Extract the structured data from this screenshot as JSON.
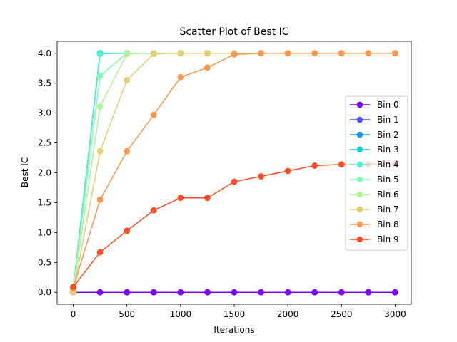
{
  "chart_data": {
    "type": "line",
    "title": "Scatter Plot of Best IC",
    "xlabel": "Iterations",
    "ylabel": "Best IC",
    "xlim": [
      -150,
      3150
    ],
    "ylim": [
      -0.2,
      4.2
    ],
    "xticks": [
      0,
      500,
      1000,
      1500,
      2000,
      2500,
      3000
    ],
    "yticks": [
      0.0,
      0.5,
      1.0,
      1.5,
      2.0,
      2.5,
      3.0,
      3.5,
      4.0
    ],
    "xtick_labels": [
      "0",
      "500",
      "1000",
      "1500",
      "2000",
      "2500",
      "3000"
    ],
    "ytick_labels": [
      "0.0",
      "0.5",
      "1.0",
      "1.5",
      "2.0",
      "2.5",
      "3.0",
      "3.5",
      "4.0"
    ],
    "legend_position": "center-right",
    "grid": false,
    "x": [
      0,
      250,
      500,
      750,
      1000,
      1250,
      1500,
      1750,
      2000,
      2250,
      2500,
      2750,
      3000
    ],
    "series": [
      {
        "name": "Bin 0",
        "color": "#8000ff",
        "values": [
          0,
          0,
          0,
          0,
          0,
          0,
          0,
          0,
          0,
          0,
          0,
          0,
          0
        ]
      },
      {
        "name": "Bin 1",
        "color": "#4c4cf9",
        "values": [
          0.05,
          4.0,
          4.0,
          4.0,
          4.0,
          4.0,
          4.0,
          4.0,
          4.0,
          4.0,
          4.0,
          4.0,
          4.0
        ]
      },
      {
        "name": "Bin 2",
        "color": "#1996f3",
        "values": [
          0.05,
          4.0,
          4.0,
          4.0,
          4.0,
          4.0,
          4.0,
          4.0,
          4.0,
          4.0,
          4.0,
          4.0,
          4.0
        ]
      },
      {
        "name": "Bin 3",
        "color": "#1ccdda",
        "values": [
          0.05,
          4.0,
          4.0,
          4.0,
          4.0,
          4.0,
          4.0,
          4.0,
          4.0,
          4.0,
          4.0,
          4.0,
          4.0
        ]
      },
      {
        "name": "Bin 4",
        "color": "#4df3ce",
        "values": [
          0.05,
          3.99,
          4.0,
          4.0,
          4.0,
          4.0,
          4.0,
          4.0,
          4.0,
          4.0,
          4.0,
          4.0,
          4.0
        ]
      },
      {
        "name": "Bin 5",
        "color": "#80ffb4",
        "values": [
          0.05,
          3.62,
          4.0,
          4.0,
          4.0,
          4.0,
          4.0,
          4.0,
          4.0,
          4.0,
          4.0,
          4.0,
          4.0
        ]
      },
      {
        "name": "Bin 6",
        "color": "#b2f396",
        "values": [
          0.03,
          3.11,
          3.99,
          4.0,
          4.0,
          4.0,
          4.0,
          4.0,
          4.0,
          4.0,
          4.0,
          4.0,
          4.0
        ]
      },
      {
        "name": "Bin 7",
        "color": "#e6cd73",
        "values": [
          0.0,
          2.36,
          3.55,
          3.99,
          4.0,
          4.0,
          4.0,
          4.0,
          4.0,
          4.0,
          4.0,
          4.0,
          4.0
        ]
      },
      {
        "name": "Bin 8",
        "color": "#ff964f",
        "values": [
          0.07,
          1.55,
          2.36,
          2.97,
          3.6,
          3.76,
          3.98,
          4.0,
          4.0,
          4.0,
          4.0,
          4.0,
          4.0
        ]
      },
      {
        "name": "Bin 9",
        "color": "#ff4d27",
        "values": [
          0.09,
          0.67,
          1.03,
          1.37,
          1.58,
          1.58,
          1.85,
          1.94,
          2.03,
          2.12,
          2.14,
          2.14,
          2.16
        ]
      }
    ]
  }
}
